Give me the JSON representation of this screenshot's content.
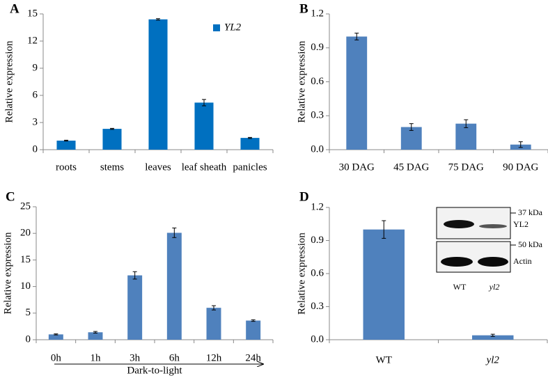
{
  "chart_data": [
    {
      "type": "bar",
      "title": "A",
      "ylabel": "Relative expression",
      "categories": [
        "roots",
        "stems",
        "leaves",
        "leaf sheath",
        "panicles"
      ],
      "series": [
        {
          "name": "YL2",
          "color": "#0070c0",
          "values": [
            1.0,
            2.3,
            14.4,
            5.2,
            1.3
          ],
          "errors": [
            0.05,
            0.06,
            0.08,
            0.35,
            0.06
          ]
        }
      ],
      "ylim": [
        0,
        15
      ],
      "yticks": [
        0,
        3,
        6,
        9,
        12,
        15
      ]
    },
    {
      "type": "bar",
      "title": "B",
      "ylabel": "Relative expression",
      "categories": [
        "30 DAG",
        "45 DAG",
        "75 DAG",
        "90 DAG"
      ],
      "values": [
        1.0,
        0.2,
        0.23,
        0.045
      ],
      "errors": [
        0.03,
        0.03,
        0.035,
        0.025
      ],
      "color": "#4f81bd",
      "ylim": [
        0,
        1.2
      ],
      "yticks": [
        {
          "value": 0,
          "label": "0.0"
        },
        0.3,
        0.6,
        0.9,
        1.2
      ]
    },
    {
      "type": "bar",
      "title": "C",
      "ylabel": "Relative expression",
      "xlabel": "Dark-to-light",
      "categories": [
        "0h",
        "1h",
        "3h",
        "6h",
        "12h",
        "24h"
      ],
      "values": [
        1.0,
        1.4,
        12.1,
        20.1,
        6.0,
        3.6
      ],
      "errors": [
        0.1,
        0.15,
        0.7,
        0.9,
        0.4,
        0.15
      ],
      "color": "#4f81bd",
      "ylim": [
        0,
        25
      ],
      "yticks": [
        0,
        5,
        10,
        15,
        20,
        25
      ]
    },
    {
      "type": "bar",
      "title": "D",
      "ylabel": "Relative expression",
      "categories": [
        "WT",
        "yl2"
      ],
      "values": [
        1.0,
        0.04
      ],
      "errors": [
        0.08,
        0.01
      ],
      "color": "#4f81bd",
      "ylim": [
        0,
        1.2
      ],
      "yticks": [
        {
          "value": 0,
          "label": "0.0"
        },
        0.3,
        0.6,
        0.9,
        1.2
      ],
      "annotations": [
        "37 kDa",
        "YL2",
        "50 kDa",
        "Actin",
        "WT",
        "yl2"
      ]
    }
  ]
}
